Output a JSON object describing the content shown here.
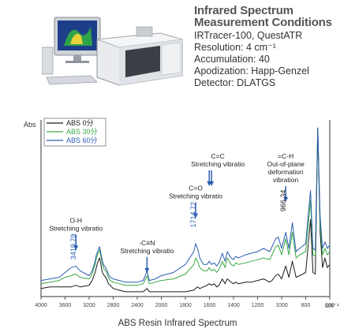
{
  "header": {
    "title_line1": "Infrared Spectrum",
    "title_line2": "Measurement Conditions",
    "conditions": [
      "IRTracer-100, QuestATR",
      "Resolution: 4 cm⁻¹",
      "Accumulation: 40",
      "Apodization: Happ-Genzel",
      "Detector: DLATGS"
    ]
  },
  "instrument_image": {
    "icon": "ftir-spectrometer-with-computer"
  },
  "chart_data": {
    "type": "line",
    "title": "ABS Resin Infrared Spectrum",
    "xlabel": "cm⁻¹",
    "ylabel": "Abs",
    "x_reversed": true,
    "xlim": [
      4000,
      600
    ],
    "xticks": [
      "4000",
      "3600",
      "3200",
      "2800",
      "2400",
      "2000",
      "1800",
      "1600",
      "1400",
      "1200",
      "1000",
      "800",
      "600"
    ],
    "legend": {
      "position": "top-left",
      "entries": [
        {
          "label": "ABS  0分",
          "color": "#1a1a1a"
        },
        {
          "label": "ABS  30分",
          "color": "#3aa845"
        },
        {
          "label": "ABS  60分",
          "color": "#2a5db0"
        }
      ]
    },
    "series": [
      {
        "name": "ABS  0分",
        "color": "#1a1a1a",
        "x": [
          4000,
          3850,
          3700,
          3600,
          3500,
          3420,
          3350,
          3200,
          3150,
          3100,
          3080,
          3060,
          3040,
          3026,
          3010,
          2980,
          2950,
          2923,
          2900,
          2880,
          2850,
          2800,
          2700,
          2600,
          2500,
          2400,
          2300,
          2238,
          2200,
          2100,
          2000,
          1900,
          1800,
          1730,
          1715,
          1700,
          1680,
          1650,
          1620,
          1602,
          1583,
          1560,
          1540,
          1520,
          1493,
          1470,
          1452,
          1420,
          1400,
          1380,
          1360,
          1300,
          1250,
          1200,
          1150,
          1100,
          1080,
          1050,
          1028,
          1000,
          966,
          940,
          911,
          880,
          850,
          800,
          760,
          740,
          720,
          700,
          680,
          660,
          640,
          620,
          600
        ],
        "y": [
          0.05,
          0.06,
          0.06,
          0.06,
          0.06,
          0.07,
          0.06,
          0.07,
          0.1,
          0.15,
          0.18,
          0.21,
          0.23,
          0.24,
          0.21,
          0.15,
          0.13,
          0.12,
          0.1,
          0.08,
          0.07,
          0.05,
          0.04,
          0.03,
          0.03,
          0.03,
          0.03,
          0.05,
          0.03,
          0.03,
          0.03,
          0.03,
          0.03,
          0.04,
          0.05,
          0.06,
          0.05,
          0.06,
          0.07,
          0.08,
          0.07,
          0.08,
          0.06,
          0.07,
          0.11,
          0.08,
          0.11,
          0.09,
          0.08,
          0.09,
          0.08,
          0.09,
          0.09,
          0.1,
          0.11,
          0.09,
          0.1,
          0.13,
          0.14,
          0.11,
          0.19,
          0.12,
          0.22,
          0.12,
          0.13,
          0.15,
          0.48,
          0.15,
          0.14,
          1.05,
          0.4,
          0.18,
          0.24,
          0.18,
          0.2
        ]
      },
      {
        "name": "ABS  30分",
        "color": "#3aa845",
        "x": [
          4000,
          3850,
          3700,
          3600,
          3500,
          3420,
          3350,
          3200,
          3150,
          3100,
          3080,
          3060,
          3040,
          3026,
          3010,
          2980,
          2950,
          2923,
          2900,
          2880,
          2850,
          2800,
          2700,
          2600,
          2500,
          2400,
          2300,
          2238,
          2200,
          2100,
          2000,
          1900,
          1800,
          1730,
          1715,
          1700,
          1680,
          1650,
          1620,
          1602,
          1583,
          1560,
          1540,
          1520,
          1493,
          1470,
          1452,
          1420,
          1400,
          1380,
          1360,
          1300,
          1250,
          1200,
          1150,
          1100,
          1080,
          1050,
          1028,
          1000,
          966,
          940,
          911,
          880,
          850,
          800,
          760,
          740,
          720,
          700,
          680,
          660,
          640,
          620,
          600
        ],
        "y": [
          0.08,
          0.09,
          0.1,
          0.12,
          0.13,
          0.14,
          0.12,
          0.11,
          0.14,
          0.2,
          0.24,
          0.26,
          0.28,
          0.29,
          0.26,
          0.2,
          0.17,
          0.16,
          0.14,
          0.12,
          0.1,
          0.09,
          0.08,
          0.07,
          0.07,
          0.07,
          0.08,
          0.13,
          0.08,
          0.09,
          0.1,
          0.11,
          0.14,
          0.2,
          0.24,
          0.22,
          0.18,
          0.16,
          0.16,
          0.18,
          0.16,
          0.17,
          0.15,
          0.17,
          0.22,
          0.18,
          0.24,
          0.2,
          0.19,
          0.21,
          0.2,
          0.21,
          0.22,
          0.23,
          0.24,
          0.23,
          0.26,
          0.31,
          0.32,
          0.26,
          0.36,
          0.26,
          0.4,
          0.24,
          0.26,
          0.28,
          0.6,
          0.26,
          0.25,
          1.05,
          0.45,
          0.26,
          0.3,
          0.26,
          0.28
        ]
      },
      {
        "name": "ABS  60分",
        "color": "#2a5db0",
        "x": [
          4000,
          3850,
          3700,
          3600,
          3500,
          3420,
          3350,
          3200,
          3150,
          3100,
          3080,
          3060,
          3040,
          3026,
          3010,
          2980,
          2950,
          2923,
          2900,
          2880,
          2850,
          2800,
          2700,
          2600,
          2500,
          2400,
          2300,
          2238,
          2200,
          2100,
          2000,
          1900,
          1800,
          1730,
          1715,
          1700,
          1680,
          1650,
          1620,
          1602,
          1583,
          1560,
          1540,
          1520,
          1493,
          1470,
          1452,
          1420,
          1400,
          1380,
          1360,
          1300,
          1250,
          1200,
          1150,
          1100,
          1080,
          1050,
          1028,
          1000,
          966,
          940,
          911,
          880,
          850,
          800,
          760,
          740,
          720,
          700,
          680,
          660,
          640,
          620,
          600
        ],
        "y": [
          0.1,
          0.11,
          0.12,
          0.15,
          0.18,
          0.19,
          0.16,
          0.13,
          0.16,
          0.22,
          0.26,
          0.28,
          0.3,
          0.31,
          0.28,
          0.22,
          0.19,
          0.18,
          0.16,
          0.14,
          0.12,
          0.11,
          0.1,
          0.09,
          0.09,
          0.09,
          0.1,
          0.16,
          0.1,
          0.11,
          0.13,
          0.15,
          0.2,
          0.28,
          0.33,
          0.3,
          0.24,
          0.2,
          0.2,
          0.22,
          0.2,
          0.21,
          0.19,
          0.21,
          0.27,
          0.22,
          0.28,
          0.24,
          0.23,
          0.25,
          0.24,
          0.26,
          0.27,
          0.28,
          0.3,
          0.28,
          0.31,
          0.36,
          0.37,
          0.3,
          0.4,
          0.3,
          0.46,
          0.28,
          0.3,
          0.33,
          0.66,
          0.3,
          0.29,
          1.05,
          0.5,
          0.3,
          0.34,
          0.3,
          0.32
        ]
      }
    ],
    "annotations": [
      {
        "lines": [
          "O-H",
          "Stretching vibratio"
        ],
        "x": 3420,
        "y": 0.46,
        "arrow": true
      },
      {
        "lines": [
          "-C≡N",
          "Stretching vibratio"
        ],
        "x": 2238,
        "y": 0.32,
        "arrow": true
      },
      {
        "lines": [
          "C=O",
          "Stretching vibratio"
        ],
        "x": 1715,
        "y": 0.66,
        "arrow": true
      },
      {
        "lines": [
          "C=C",
          "Stretching vibratio"
        ],
        "x": 1530,
        "y": 0.86,
        "arrow": true,
        "arrow_x": [
          1602,
          1583
        ]
      },
      {
        "lines": [
          "=C-H",
          "Out-of-plane",
          "deformation",
          "vibration"
        ],
        "x": 966,
        "y": 0.86,
        "arrow": true
      }
    ],
    "peak_labels": [
      {
        "text": "3419.79",
        "x": 3420,
        "y": 0.23,
        "color": "#2a5db0"
      },
      {
        "text": "1714.72",
        "x": 1715,
        "y": 0.43,
        "color": "#2a5db0"
      },
      {
        "text": "966.34",
        "x": 966,
        "y": 0.53,
        "color": "#222222"
      }
    ],
    "grid": false
  }
}
